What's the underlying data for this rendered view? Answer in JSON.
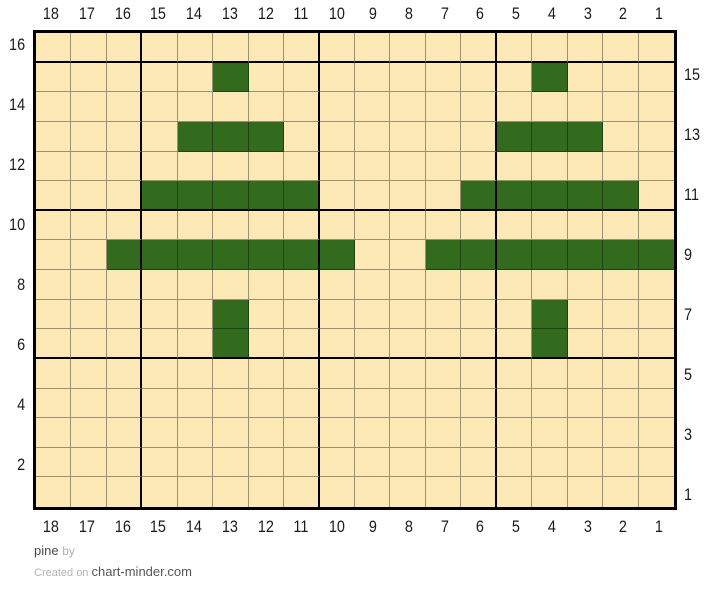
{
  "footer": {
    "title": "pine",
    "by_label": "by",
    "created_on": "Created on",
    "site": "chart-minder.com"
  },
  "chart_data": {
    "type": "heatmap",
    "title": "pine",
    "description": "knitting colorwork chart, 18 stitches x 16 rows, two pine tree motifs",
    "axes": {
      "top": [
        "18",
        "17",
        "16",
        "15",
        "14",
        "13",
        "12",
        "11",
        "10",
        "9",
        "8",
        "7",
        "6",
        "5",
        "4",
        "3",
        "2",
        "1"
      ],
      "bottom": [
        "18",
        "17",
        "16",
        "15",
        "14",
        "13",
        "12",
        "11",
        "10",
        "9",
        "8",
        "7",
        "6",
        "5",
        "4",
        "3",
        "2",
        "1"
      ],
      "left": [
        "16",
        "14",
        "12",
        "10",
        "8",
        "6",
        "4",
        "2"
      ],
      "right": [
        "15",
        "13",
        "11",
        "9",
        "7",
        "5",
        "3",
        "1"
      ]
    },
    "rows_top_to_bottom": [
      16,
      15,
      14,
      13,
      12,
      11,
      10,
      9,
      8,
      7,
      6,
      5,
      4,
      3,
      2,
      1
    ],
    "columns_left_to_right": [
      18,
      17,
      16,
      15,
      14,
      13,
      12,
      11,
      10,
      9,
      8,
      7,
      6,
      5,
      4,
      3,
      2,
      1
    ],
    "colors": {
      "0": "#FCE9B6",
      "1": "#336B1E"
    },
    "color_names": {
      "0": "cream background stitch",
      "1": "pine green stitch"
    },
    "matrix": [
      [
        0,
        0,
        0,
        0,
        0,
        0,
        0,
        0,
        0,
        0,
        0,
        0,
        0,
        0,
        0,
        0,
        0,
        0
      ],
      [
        0,
        0,
        0,
        0,
        0,
        1,
        0,
        0,
        0,
        0,
        0,
        0,
        0,
        0,
        1,
        0,
        0,
        0
      ],
      [
        0,
        0,
        0,
        0,
        0,
        0,
        0,
        0,
        0,
        0,
        0,
        0,
        0,
        0,
        0,
        0,
        0,
        0
      ],
      [
        0,
        0,
        0,
        0,
        1,
        1,
        1,
        0,
        0,
        0,
        0,
        0,
        0,
        1,
        1,
        1,
        0,
        0
      ],
      [
        0,
        0,
        0,
        0,
        0,
        0,
        0,
        0,
        0,
        0,
        0,
        0,
        0,
        0,
        0,
        0,
        0,
        0
      ],
      [
        0,
        0,
        0,
        1,
        1,
        1,
        1,
        1,
        0,
        0,
        0,
        0,
        1,
        1,
        1,
        1,
        1,
        0
      ],
      [
        0,
        0,
        0,
        0,
        0,
        0,
        0,
        0,
        0,
        0,
        0,
        0,
        0,
        0,
        0,
        0,
        0,
        0
      ],
      [
        0,
        0,
        1,
        1,
        1,
        1,
        1,
        1,
        1,
        0,
        0,
        1,
        1,
        1,
        1,
        1,
        1,
        1
      ],
      [
        0,
        0,
        0,
        0,
        0,
        0,
        0,
        0,
        0,
        0,
        0,
        0,
        0,
        0,
        0,
        0,
        0,
        0
      ],
      [
        0,
        0,
        0,
        0,
        0,
        1,
        0,
        0,
        0,
        0,
        0,
        0,
        0,
        0,
        1,
        0,
        0,
        0
      ],
      [
        0,
        0,
        0,
        0,
        0,
        1,
        0,
        0,
        0,
        0,
        0,
        0,
        0,
        0,
        1,
        0,
        0,
        0
      ],
      [
        0,
        0,
        0,
        0,
        0,
        0,
        0,
        0,
        0,
        0,
        0,
        0,
        0,
        0,
        0,
        0,
        0,
        0
      ],
      [
        0,
        0,
        0,
        0,
        0,
        0,
        0,
        0,
        0,
        0,
        0,
        0,
        0,
        0,
        0,
        0,
        0,
        0
      ],
      [
        0,
        0,
        0,
        0,
        0,
        0,
        0,
        0,
        0,
        0,
        0,
        0,
        0,
        0,
        0,
        0,
        0,
        0
      ],
      [
        0,
        0,
        0,
        0,
        0,
        0,
        0,
        0,
        0,
        0,
        0,
        0,
        0,
        0,
        0,
        0,
        0,
        0
      ],
      [
        0,
        0,
        0,
        0,
        0,
        0,
        0,
        0,
        0,
        0,
        0,
        0,
        0,
        0,
        0,
        0,
        0,
        0
      ]
    ],
    "layout": {
      "bold_gridline_every": 5,
      "bold_after_col_index": [
        2,
        7,
        12
      ],
      "bold_after_row_index": [
        0,
        5,
        10
      ],
      "grid_on": true
    }
  }
}
